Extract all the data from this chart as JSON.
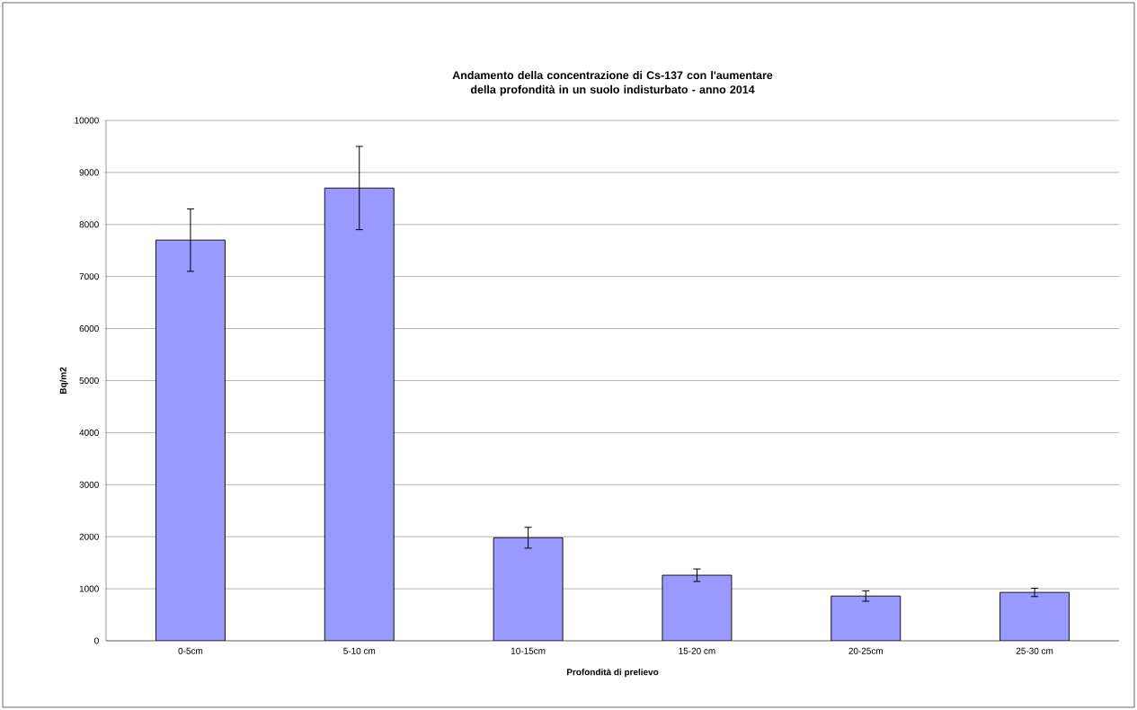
{
  "chart_data": {
    "type": "bar",
    "title": "Andamento della concentrazione di Cs-137 con l'aumentare della profondità in un suolo indisturbato - anno 2014",
    "xlabel": "Profondità di prelievo",
    "ylabel": "Bq/m2",
    "categories": [
      "0-5cm",
      "5-10 cm",
      "10-15cm",
      "15-20 cm",
      "20-25cm",
      "25-30 cm"
    ],
    "values": [
      7700,
      8700,
      1980,
      1260,
      860,
      930
    ],
    "errors": [
      600,
      800,
      200,
      120,
      100,
      80
    ],
    "color": "#9999ff",
    "ylim": [
      0,
      10000
    ],
    "yticks": [
      0,
      1000,
      2000,
      3000,
      4000,
      5000,
      6000,
      7000,
      8000,
      9000,
      10000
    ],
    "grid": "y"
  }
}
